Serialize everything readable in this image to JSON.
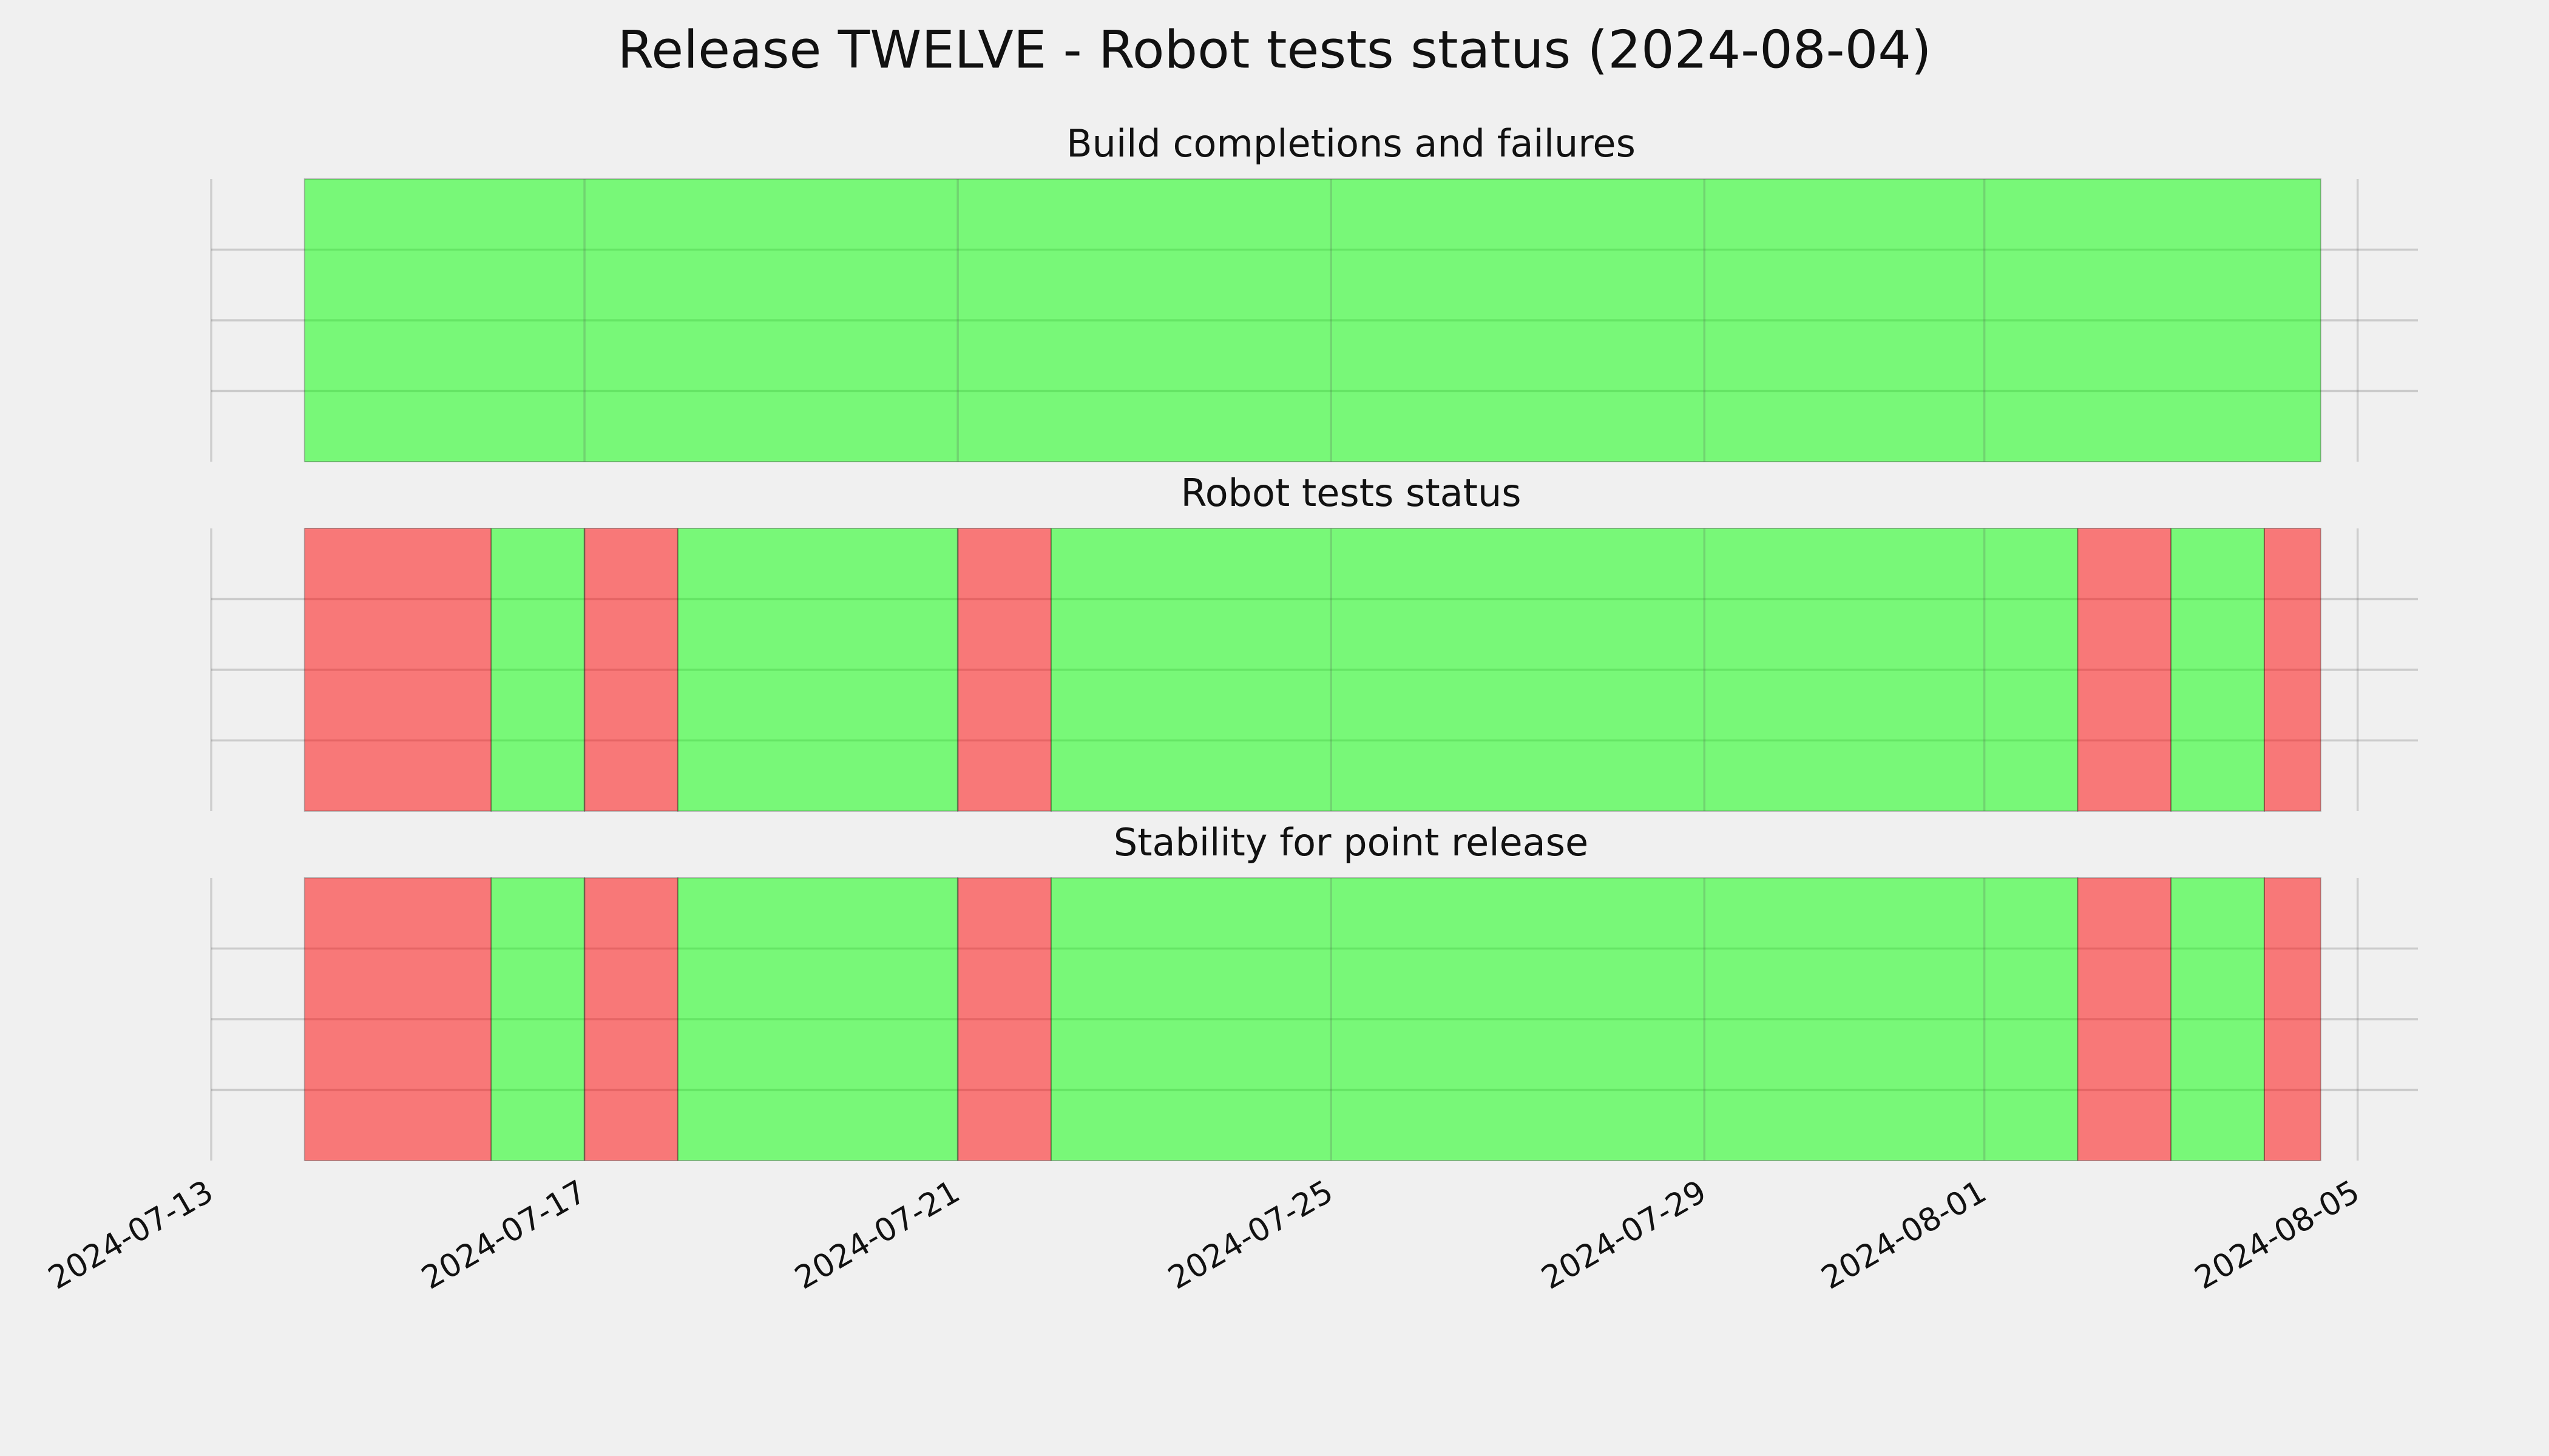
{
  "title": "Release TWELVE - Robot tests status (2024-08-04)",
  "chart_data": [
    {
      "type": "timeline",
      "title": "Build completions and failures",
      "xlim": [
        "2024-07-13",
        "2024-08-05T15:30"
      ],
      "xticks": [
        "2024-07-13",
        "2024-07-17",
        "2024-07-21",
        "2024-07-25",
        "2024-07-29",
        "2024-08-01",
        "2024-08-05"
      ],
      "ylim": [
        0,
        1
      ],
      "yticks": [
        0.25,
        0.5,
        0.75
      ],
      "grid": true,
      "spans": [
        {
          "start": "2024-07-14",
          "end": "2024-08-04T14:30",
          "color": "#00ff00"
        }
      ]
    },
    {
      "type": "timeline",
      "title": "Robot tests status",
      "xlim": [
        "2024-07-13",
        "2024-08-05T15:30"
      ],
      "xticks": [
        "2024-07-13",
        "2024-07-17",
        "2024-07-21",
        "2024-07-25",
        "2024-07-29",
        "2024-08-01",
        "2024-08-05"
      ],
      "ylim": [
        0,
        1
      ],
      "yticks": [
        0.25,
        0.5,
        0.75
      ],
      "grid": true,
      "spans": [
        {
          "start": "2024-07-14",
          "end": "2024-07-16",
          "color": "#ff0000"
        },
        {
          "start": "2024-07-16",
          "end": "2024-07-17",
          "color": "#00ff00"
        },
        {
          "start": "2024-07-17",
          "end": "2024-07-18",
          "color": "#ff0000"
        },
        {
          "start": "2024-07-18",
          "end": "2024-07-21",
          "color": "#00ff00"
        },
        {
          "start": "2024-07-21",
          "end": "2024-07-22",
          "color": "#ff0000"
        },
        {
          "start": "2024-07-22",
          "end": "2024-08-02",
          "color": "#00ff00"
        },
        {
          "start": "2024-08-02",
          "end": "2024-08-03",
          "color": "#ff0000"
        },
        {
          "start": "2024-08-03",
          "end": "2024-08-04",
          "color": "#00ff00"
        },
        {
          "start": "2024-08-04",
          "end": "2024-08-04T14:30",
          "color": "#ff0000"
        }
      ]
    },
    {
      "type": "timeline",
      "title": "Stability for point release",
      "xlim": [
        "2024-07-13",
        "2024-08-05T15:30"
      ],
      "xticks": [
        "2024-07-13",
        "2024-07-17",
        "2024-07-21",
        "2024-07-25",
        "2024-07-29",
        "2024-08-01",
        "2024-08-05"
      ],
      "ylim": [
        0,
        1
      ],
      "yticks": [
        0.25,
        0.5,
        0.75
      ],
      "grid": true,
      "spans": [
        {
          "start": "2024-07-14",
          "end": "2024-07-16",
          "color": "#ff0000"
        },
        {
          "start": "2024-07-16",
          "end": "2024-07-17",
          "color": "#00ff00"
        },
        {
          "start": "2024-07-17",
          "end": "2024-07-18",
          "color": "#ff0000"
        },
        {
          "start": "2024-07-18",
          "end": "2024-07-21",
          "color": "#00ff00"
        },
        {
          "start": "2024-07-21",
          "end": "2024-07-22",
          "color": "#ff0000"
        },
        {
          "start": "2024-07-22",
          "end": "2024-08-02",
          "color": "#00ff00"
        },
        {
          "start": "2024-08-02",
          "end": "2024-08-03",
          "color": "#ff0000"
        },
        {
          "start": "2024-08-03",
          "end": "2024-08-04",
          "color": "#00ff00"
        },
        {
          "start": "2024-08-04",
          "end": "2024-08-04T14:30",
          "color": "#ff0000"
        }
      ]
    }
  ]
}
